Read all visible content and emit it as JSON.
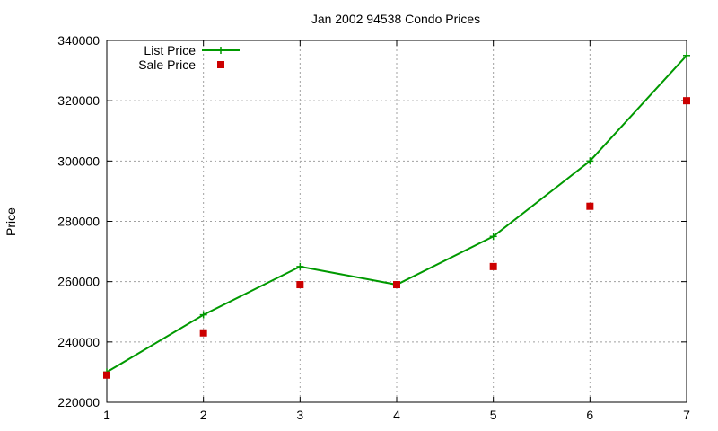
{
  "chart_data": {
    "type": "line",
    "title": "Jan 2002 94538 Condo Prices",
    "xlabel": "",
    "ylabel": "Price",
    "x": [
      1,
      2,
      3,
      4,
      5,
      6,
      7
    ],
    "xlim": [
      1,
      7
    ],
    "ylim": [
      220000,
      340000
    ],
    "xticks": [
      "1",
      "2",
      "3",
      "4",
      "5",
      "6",
      "7"
    ],
    "yticks": [
      "220000",
      "240000",
      "260000",
      "280000",
      "300000",
      "320000",
      "340000"
    ],
    "grid": true,
    "legend_position": "top-left",
    "series": [
      {
        "name": "List Price",
        "style": "lines+points",
        "marker": "plus",
        "color": "#009900",
        "values": [
          230000,
          249000,
          265000,
          259000,
          275000,
          300000,
          335000
        ]
      },
      {
        "name": "Sale Price",
        "style": "points",
        "marker": "square",
        "color": "#cc0000",
        "values": [
          229000,
          243000,
          259000,
          259000,
          265000,
          285000,
          320000
        ]
      }
    ]
  }
}
